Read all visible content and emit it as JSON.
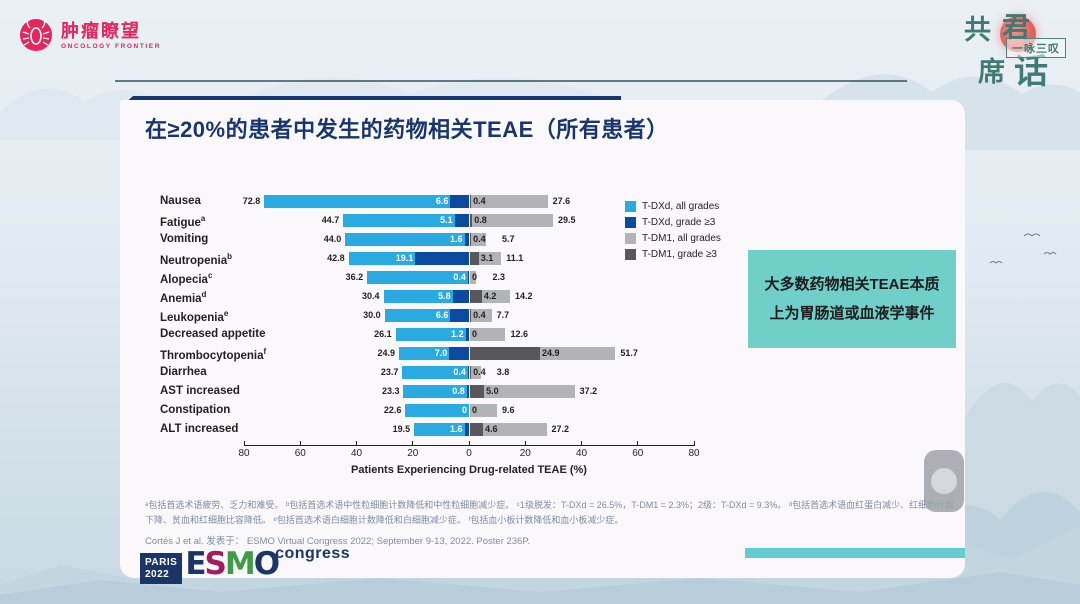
{
  "colors": {
    "title_navy": "#17356e",
    "callout_teal": "#70cfc8",
    "bottom_bar_teal": "#63ccd3",
    "brand_red": "#e5255c",
    "brand_teal": "#3e7b74",
    "tdxd_all": "#29abe2",
    "tdxd_g3": "#0a4a9f",
    "tdm1_all": "#b1b3b5",
    "tdm1_g3": "#58585a"
  },
  "brand": {
    "oncology_frontier_zh": "肿瘤瞭望",
    "oncology_frontier_en": "ONCOLOGY FRONTIER",
    "right_logo_char1": "共",
    "right_logo_char2": "君",
    "right_logo_char3": "席",
    "right_logo_char4": "话",
    "right_logo_tagline": "一咏三叹"
  },
  "slide": {
    "title": "在≥20%的患者中发生的药物相关TEAE（所有患者）",
    "callout": "大多数药物相关TEAE本质上为胃肠道或血液学事件",
    "footnote": "ᵃ包括首选术语疲劳、乏力和难受。 ᵇ包括首选术语中性粒细胞计数降低和中性粒细胞减少症。 ᶜ1级脱发：T-DXd = 26.5%，T-DM1 = 2.3%；2级：T-DXd = 9.3%。 ᵈ包括首选术语血红蛋白减少、红细胞计数下降、贫血和红细胞比容降低。 ᵉ包括首选术语白细胞计数降低和白细胞减少症。 ᶠ包括血小板计数降低和血小板减少症。",
    "citation": "Cortés J et al. 发表于： ESMO Virtual Congress 2022; September 9-13, 2022. Poster 236P.",
    "congress": {
      "city": "PARIS",
      "year": "2022",
      "letters": [
        {
          "ch": "E",
          "color": "#1a3668"
        },
        {
          "ch": "S",
          "color": "#a21c5e"
        },
        {
          "ch": "M",
          "color": "#3f9c46"
        },
        {
          "ch": "O",
          "color": "#1a3668"
        }
      ],
      "word": "congress"
    }
  },
  "chart_data": {
    "type": "bar",
    "orientation": "horizontal-diverging",
    "xlabel": "Patients Experiencing Drug-related TEAE (%)",
    "xlim": [
      -80,
      80
    ],
    "axis_ticks": [
      -80,
      -60,
      -40,
      -20,
      0,
      20,
      40,
      60,
      80
    ],
    "grid": false,
    "legend_position": "upper-right",
    "legend": [
      {
        "label": "T-DXd, all grades",
        "color": "#29abe2"
      },
      {
        "label": "T-DXd, grade ≥3",
        "color": "#0a4a9f"
      },
      {
        "label": "T-DM1, all grades",
        "color": "#b1b3b5"
      },
      {
        "label": "T-DM1, grade ≥3",
        "color": "#58585a"
      }
    ],
    "categories": [
      {
        "label": "Nausea",
        "sup": ""
      },
      {
        "label": "Fatigue",
        "sup": "a"
      },
      {
        "label": "Vomiting",
        "sup": ""
      },
      {
        "label": "Neutropenia",
        "sup": "b"
      },
      {
        "label": "Alopecia",
        "sup": "c"
      },
      {
        "label": "Anemia",
        "sup": "d"
      },
      {
        "label": "Leukopenia",
        "sup": "e"
      },
      {
        "label": "Decreased appetite",
        "sup": ""
      },
      {
        "label": "Thrombocytopenia",
        "sup": "f"
      },
      {
        "label": "Diarrhea",
        "sup": ""
      },
      {
        "label": "AST increased",
        "sup": ""
      },
      {
        "label": "Constipation",
        "sup": ""
      },
      {
        "label": "ALT increased",
        "sup": ""
      }
    ],
    "series": [
      {
        "name": "T-DXd, all grades",
        "side": "left",
        "values": [
          72.8,
          44.7,
          44.0,
          42.8,
          36.2,
          30.4,
          30.0,
          26.1,
          24.9,
          23.7,
          23.3,
          22.6,
          19.5
        ]
      },
      {
        "name": "T-DXd, grade ≥3",
        "side": "left",
        "values": [
          6.6,
          5.1,
          1.6,
          19.1,
          0.4,
          5.8,
          6.6,
          1.2,
          7.0,
          0.4,
          0.8,
          0,
          1.6
        ]
      },
      {
        "name": "T-DM1, all grades",
        "side": "right",
        "values": [
          27.6,
          29.5,
          5.7,
          11.1,
          2.3,
          14.2,
          7.7,
          12.6,
          51.7,
          3.8,
          37.2,
          9.6,
          27.2
        ]
      },
      {
        "name": "T-DM1, grade ≥3",
        "side": "right",
        "values": [
          0.4,
          0.8,
          0.4,
          3.1,
          0,
          4.2,
          0.4,
          0,
          24.9,
          0.4,
          5.0,
          0,
          4.6
        ]
      }
    ]
  }
}
